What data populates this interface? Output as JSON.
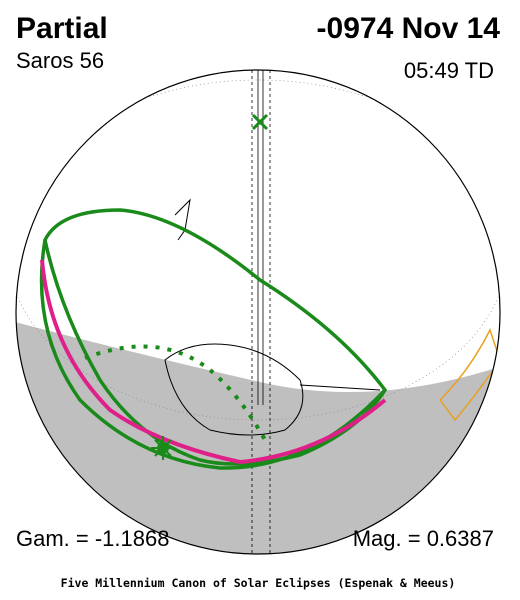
{
  "header": {
    "type": "Partial",
    "date": "-0974 Nov 14",
    "saros": "Saros  56",
    "time": "05:49 TD"
  },
  "footer": {
    "gamma": "Gam. = -1.1868",
    "magnitude": "Mag. = 0.6387",
    "credit": "Five Millennium Canon of Solar Eclipses (Espenak & Meeus)"
  }
}
